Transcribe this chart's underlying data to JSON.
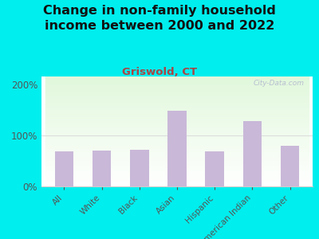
{
  "title": "Change in non-family household\nincome between 2000 and 2022",
  "subtitle": "Griswold, CT",
  "categories": [
    "All",
    "White",
    "Black",
    "Asian",
    "Hispanic",
    "American Indian",
    "Other"
  ],
  "values": [
    68,
    70,
    72,
    148,
    68,
    128,
    80
  ],
  "bar_color": "#c9b8d8",
  "title_fontsize": 11.5,
  "subtitle_fontsize": 9.5,
  "subtitle_color": "#aa4444",
  "title_color": "#111111",
  "ylabel_ticks": [
    "0%",
    "100%",
    "200%"
  ],
  "yticks": [
    0,
    100,
    200
  ],
  "ylim": [
    0,
    215
  ],
  "background_outer": "#00eeee",
  "watermark": "City-Data.com",
  "watermark_color": "#aaaacc",
  "tick_color": "#555555",
  "spine_color": "#cccccc"
}
